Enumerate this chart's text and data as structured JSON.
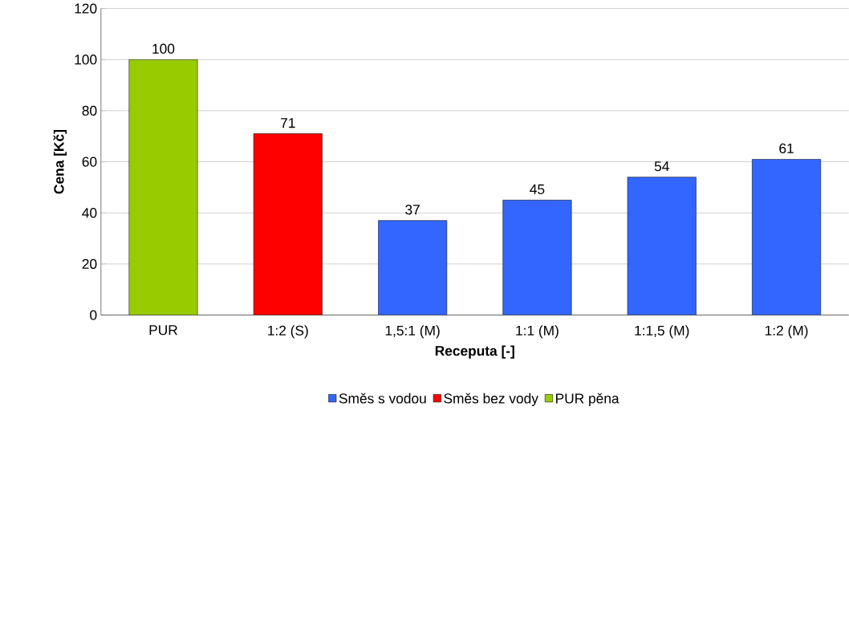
{
  "chart_data": {
    "type": "bar",
    "xlabel": "Receputa [-]",
    "ylabel": "Cena [Kč]",
    "categories": [
      "PUR",
      "1:2 (S)",
      "1,5:1 (M)",
      "1:1 (M)",
      "1:1,5 (M)",
      "1:2 (M)"
    ],
    "series": [
      {
        "name": "Směs s vodou",
        "color": "#3366ff",
        "values": [
          null,
          null,
          37,
          45,
          54,
          61
        ]
      },
      {
        "name": "Směs bez vody",
        "color": "#ff0000",
        "values": [
          null,
          71,
          null,
          null,
          null,
          null
        ]
      },
      {
        "name": "PUR pěna",
        "color": "#99cc00",
        "values": [
          100,
          null,
          null,
          null,
          null,
          null
        ]
      }
    ],
    "ylim": [
      0,
      120
    ],
    "yticks": [
      0,
      20,
      40,
      60,
      80,
      100,
      120
    ],
    "grid": "y",
    "legend": "bottom",
    "data_labels": true
  }
}
